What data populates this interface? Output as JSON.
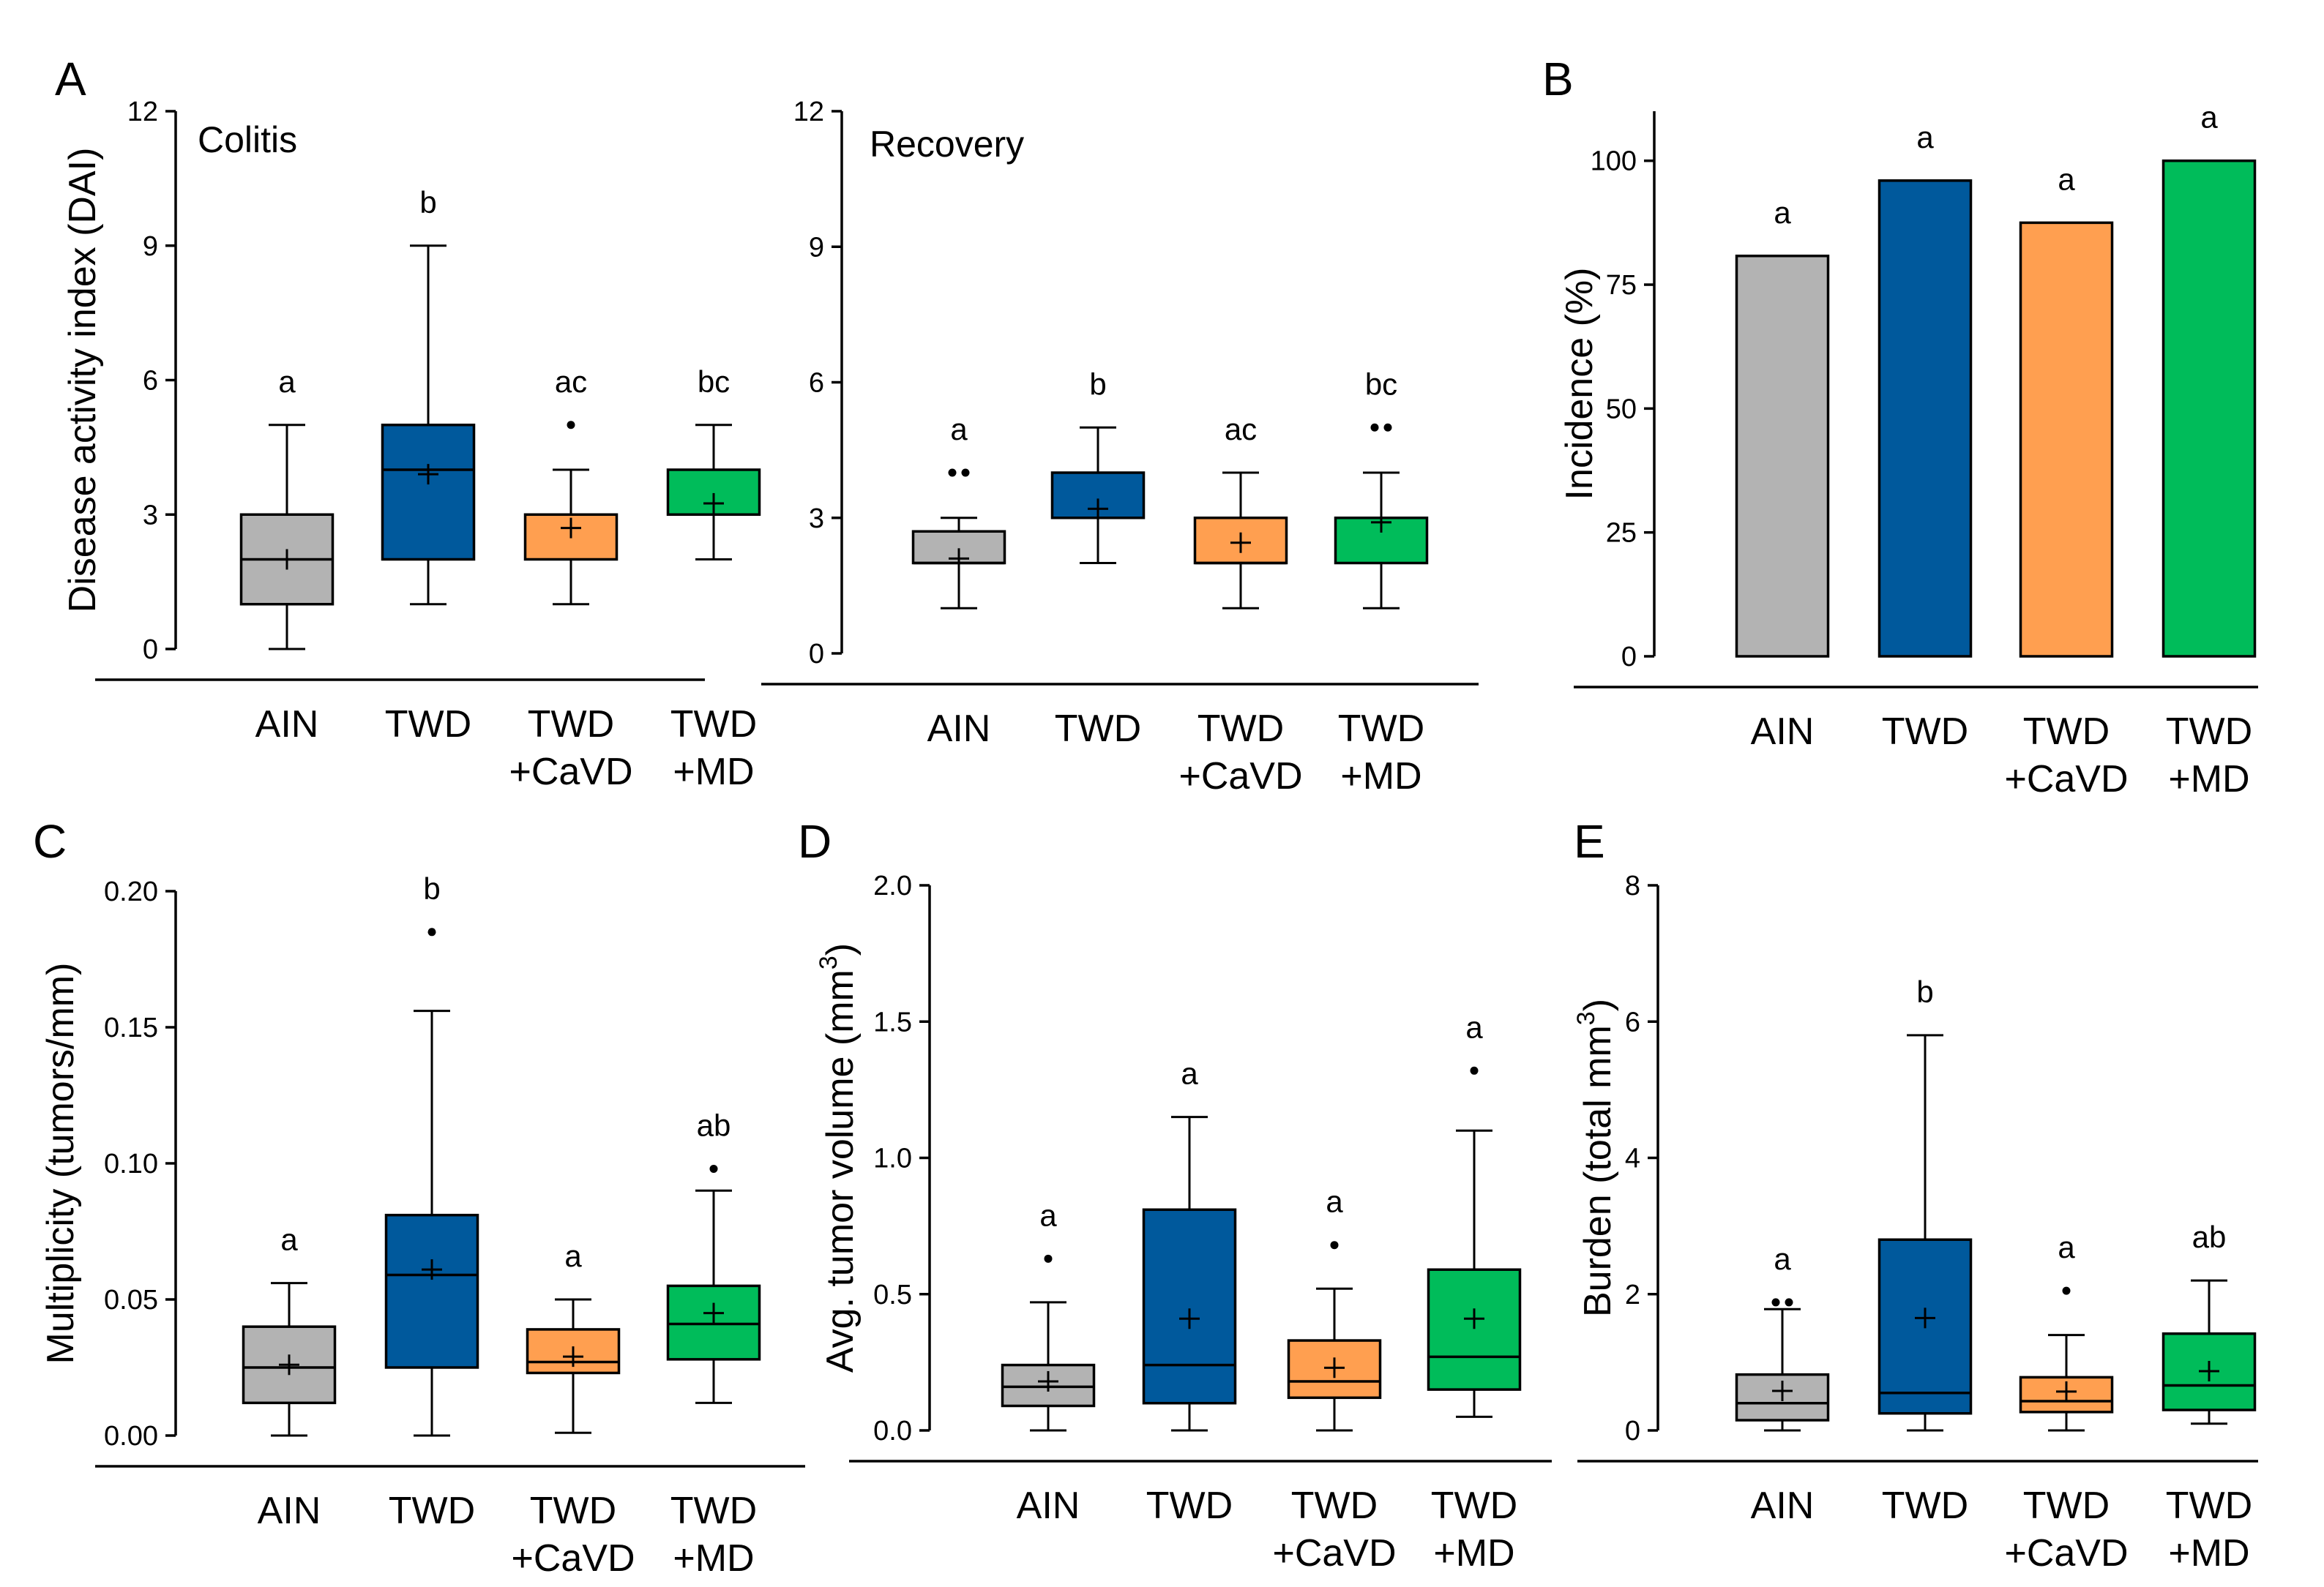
{
  "colors": {
    "AIN": "#b3b3b3",
    "TWD": "#00599c",
    "TWD+CaVD": "#ff9f50",
    "TWD+MD": "#00bc5a"
  },
  "chart_data": [
    {
      "id": "A1",
      "letter": "A",
      "type": "box",
      "title": "Colitis",
      "ylabel": "Disease activity index (DAI)",
      "ylim": [
        0,
        12
      ],
      "yticks": [
        "0",
        "3",
        "6",
        "9",
        "12"
      ],
      "categories": [
        [
          "AIN"
        ],
        [
          "TWD"
        ],
        [
          "TWD",
          "+CaVD"
        ],
        [
          "TWD",
          "+MD"
        ]
      ],
      "groups": [
        {
          "name": "AIN",
          "color_key": "AIN",
          "min": 0,
          "q1": 1,
          "median": 2,
          "q3": 3,
          "max": 5,
          "mean": 2.0,
          "outliers": [],
          "sig": "a"
        },
        {
          "name": "TWD",
          "color_key": "TWD",
          "min": 1,
          "q1": 2,
          "median": 4,
          "q3": 5,
          "max": 9,
          "mean": 3.9,
          "outliers": [],
          "sig": "b"
        },
        {
          "name": "TWD+CaVD",
          "color_key": "TWD+CaVD",
          "min": 1,
          "q1": 2,
          "median": 3,
          "q3": 3,
          "max": 4,
          "mean": 2.7,
          "outliers": [
            5
          ],
          "sig": "ac"
        },
        {
          "name": "TWD+MD",
          "color_key": "TWD+MD",
          "min": 2,
          "q1": 3,
          "median": 3,
          "q3": 4,
          "max": 5,
          "mean": 3.25,
          "outliers": [],
          "sig": "bc"
        }
      ]
    },
    {
      "id": "A2",
      "letter": "",
      "type": "box",
      "title": "Recovery",
      "ylabel": "",
      "ylim": [
        0,
        12
      ],
      "yticks": [
        "0",
        "3",
        "6",
        "9",
        "12"
      ],
      "categories": [
        [
          "AIN"
        ],
        [
          "TWD"
        ],
        [
          "TWD",
          "+CaVD"
        ],
        [
          "TWD",
          "+MD"
        ]
      ],
      "groups": [
        {
          "name": "AIN",
          "color_key": "AIN",
          "min": 1,
          "q1": 2,
          "median": 2,
          "q3": 2.7,
          "max": 3,
          "mean": 2.1,
          "outliers": [
            4,
            4
          ],
          "sig": "a"
        },
        {
          "name": "TWD",
          "color_key": "TWD",
          "min": 2,
          "q1": 3,
          "median": 3,
          "q3": 4,
          "max": 5,
          "mean": 3.2,
          "outliers": [],
          "sig": "b"
        },
        {
          "name": "TWD+CaVD",
          "color_key": "TWD+CaVD",
          "min": 1,
          "q1": 2,
          "median": 2,
          "q3": 3,
          "max": 4,
          "mean": 2.45,
          "outliers": [],
          "sig": "ac"
        },
        {
          "name": "TWD+MD",
          "color_key": "TWD+MD",
          "min": 1,
          "q1": 2,
          "median": 3,
          "q3": 3,
          "max": 4,
          "mean": 2.9,
          "outliers": [
            5,
            5
          ],
          "sig": "bc"
        }
      ]
    },
    {
      "id": "B",
      "letter": "B",
      "type": "bar",
      "title": "",
      "ylabel": "Incidence (%)",
      "ylim": [
        0,
        110
      ],
      "yticks": [
        "0",
        "25",
        "50",
        "75",
        "100"
      ],
      "categories": [
        [
          "AIN"
        ],
        [
          "TWD"
        ],
        [
          "TWD",
          "+CaVD"
        ],
        [
          "TWD",
          "+MD"
        ]
      ],
      "groups": [
        {
          "name": "AIN",
          "color_key": "AIN",
          "value": 80.8,
          "sig": "a"
        },
        {
          "name": "TWD",
          "color_key": "TWD",
          "value": 96,
          "sig": "a"
        },
        {
          "name": "TWD+CaVD",
          "color_key": "TWD+CaVD",
          "value": 87.5,
          "sig": "a"
        },
        {
          "name": "TWD+MD",
          "color_key": "TWD+MD",
          "value": 100,
          "sig": "a"
        }
      ]
    },
    {
      "id": "C",
      "letter": "C",
      "type": "box",
      "title": "",
      "ylabel": "Multiplicity (tumors/mm)",
      "ylim": [
        0,
        0.2
      ],
      "yticks": [
        "0.00",
        "0.05",
        "0.10",
        "0.15",
        "0.20"
      ],
      "categories": [
        [
          "AIN"
        ],
        [
          "TWD"
        ],
        [
          "TWD",
          "+CaVD"
        ],
        [
          "TWD",
          "+MD"
        ]
      ],
      "groups": [
        {
          "name": "AIN",
          "color_key": "AIN",
          "min": 0,
          "q1": 0.012,
          "median": 0.025,
          "q3": 0.04,
          "max": 0.056,
          "mean": 0.026,
          "outliers": [],
          "sig": "a"
        },
        {
          "name": "TWD",
          "color_key": "TWD",
          "min": 0,
          "q1": 0.025,
          "median": 0.059,
          "q3": 0.081,
          "max": 0.156,
          "mean": 0.061,
          "outliers": [
            0.185
          ],
          "sig": "b"
        },
        {
          "name": "TWD+CaVD",
          "color_key": "TWD+CaVD",
          "min": 0.001,
          "q1": 0.023,
          "median": 0.027,
          "q3": 0.039,
          "max": 0.05,
          "mean": 0.029,
          "outliers": [],
          "sig": "a"
        },
        {
          "name": "TWD+MD",
          "color_key": "TWD+MD",
          "min": 0.012,
          "q1": 0.028,
          "median": 0.041,
          "q3": 0.055,
          "max": 0.09,
          "mean": 0.045,
          "outliers": [
            0.098
          ],
          "sig": "ab"
        }
      ]
    },
    {
      "id": "D",
      "letter": "D",
      "type": "box",
      "title": "",
      "ylabel": "Avg. tumor volume (mm",
      "ylabel_sup": "3",
      "ylabel_end": ")",
      "ylim": [
        0,
        2
      ],
      "yticks": [
        "0.0",
        "0.5",
        "1.0",
        "1.5",
        "2.0"
      ],
      "categories": [
        [
          "AIN"
        ],
        [
          "TWD"
        ],
        [
          "TWD",
          "+CaVD"
        ],
        [
          "TWD",
          "+MD"
        ]
      ],
      "groups": [
        {
          "name": "AIN",
          "color_key": "AIN",
          "min": 0,
          "q1": 0.09,
          "median": 0.16,
          "q3": 0.24,
          "max": 0.47,
          "mean": 0.18,
          "outliers": [
            0.63
          ],
          "sig": "a"
        },
        {
          "name": "TWD",
          "color_key": "TWD",
          "min": 0,
          "q1": 0.1,
          "median": 0.24,
          "q3": 0.81,
          "max": 1.15,
          "mean": 0.41,
          "outliers": [],
          "sig": "a"
        },
        {
          "name": "TWD+CaVD",
          "color_key": "TWD+CaVD",
          "min": 0,
          "q1": 0.12,
          "median": 0.18,
          "q3": 0.33,
          "max": 0.52,
          "mean": 0.23,
          "outliers": [
            0.68
          ],
          "sig": "a"
        },
        {
          "name": "TWD+MD",
          "color_key": "TWD+MD",
          "min": 0.05,
          "q1": 0.15,
          "median": 0.27,
          "q3": 0.59,
          "max": 1.1,
          "mean": 0.41,
          "outliers": [
            1.32
          ],
          "sig": "a"
        }
      ]
    },
    {
      "id": "E",
      "letter": "E",
      "type": "box",
      "title": "",
      "ylabel": "Burden (total mm",
      "ylabel_sup": "3",
      "ylabel_end": ")",
      "ylim": [
        0,
        8
      ],
      "yticks": [
        "0",
        "2",
        "4",
        "6",
        "8"
      ],
      "categories": [
        [
          "AIN"
        ],
        [
          "TWD"
        ],
        [
          "TWD",
          "+CaVD"
        ],
        [
          "TWD",
          "+MD"
        ]
      ],
      "groups": [
        {
          "name": "AIN",
          "color_key": "AIN",
          "min": 0,
          "q1": 0.15,
          "median": 0.4,
          "q3": 0.82,
          "max": 1.78,
          "mean": 0.58,
          "outliers": [
            1.88,
            1.88
          ],
          "sig": "a"
        },
        {
          "name": "TWD",
          "color_key": "TWD",
          "min": 0,
          "q1": 0.25,
          "median": 0.55,
          "q3": 2.8,
          "max": 5.8,
          "mean": 1.65,
          "outliers": [],
          "sig": "b"
        },
        {
          "name": "TWD+CaVD",
          "color_key": "TWD+CaVD",
          "min": 0,
          "q1": 0.27,
          "median": 0.43,
          "q3": 0.78,
          "max": 1.4,
          "mean": 0.57,
          "outliers": [
            2.05
          ],
          "sig": "a"
        },
        {
          "name": "TWD+MD",
          "color_key": "TWD+MD",
          "min": 0.1,
          "q1": 0.3,
          "median": 0.66,
          "q3": 1.42,
          "max": 2.2,
          "mean": 0.87,
          "outliers": [],
          "sig": "ab"
        }
      ]
    }
  ]
}
